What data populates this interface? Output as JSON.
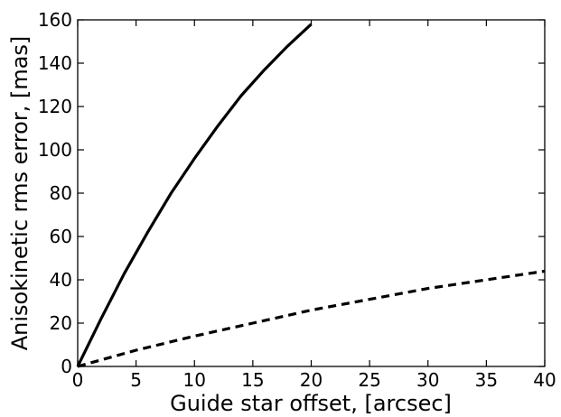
{
  "chart_data": {
    "type": "line",
    "title": "",
    "xlabel": "Guide star offset, [arcsec]",
    "ylabel": "Anisokinetic rms error, [mas]",
    "xlim": [
      0,
      40
    ],
    "ylim": [
      0,
      160
    ],
    "xticks": [
      "0",
      "5",
      "10",
      "15",
      "20",
      "25",
      "30",
      "35",
      "40"
    ],
    "yticks": [
      "0",
      "20",
      "40",
      "60",
      "80",
      "100",
      "120",
      "140",
      "160"
    ],
    "grid": false,
    "legend": "none",
    "series": [
      {
        "style": "solid",
        "color": "#000000",
        "x": [
          0,
          2,
          4,
          6,
          8,
          10,
          12,
          14,
          16,
          18,
          20
        ],
        "y": [
          0,
          22,
          43,
          62,
          80,
          96,
          111,
          125,
          137,
          148,
          158
        ]
      },
      {
        "style": "dashed",
        "color": "#000000",
        "x": [
          0,
          5,
          10,
          15,
          20,
          25,
          30,
          35,
          40
        ],
        "y": [
          0,
          7.5,
          14,
          20,
          26,
          31,
          36,
          40,
          44
        ]
      }
    ]
  }
}
